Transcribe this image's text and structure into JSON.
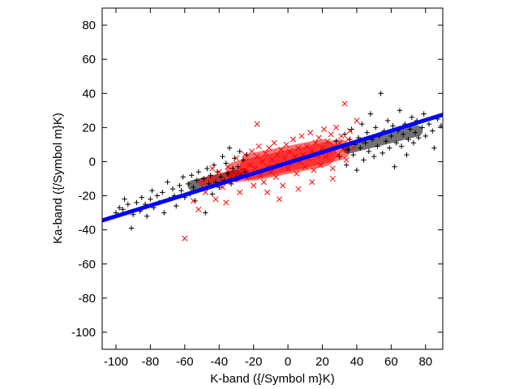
{
  "chart_data": {
    "type": "scatter",
    "xlabel": "K-band ({/Symbol m}K)",
    "ylabel": "Ka-band ({/Symbol m}K)",
    "xlim": [
      -108,
      90
    ],
    "ylim": [
      -110,
      90
    ],
    "x_ticks": [
      -100,
      -80,
      -60,
      -40,
      -20,
      0,
      20,
      40,
      60,
      80
    ],
    "y_ticks": [
      -100,
      -80,
      -60,
      -40,
      -20,
      0,
      20,
      40,
      60,
      80
    ],
    "grid": false,
    "legend": "none",
    "series": [
      {
        "marker": "plus",
        "color": "#000000",
        "points_estimated": [
          [
            -100,
            -30
          ],
          [
            -98,
            -27
          ],
          [
            -96,
            -28
          ],
          [
            -95,
            -22
          ],
          [
            -93,
            -25
          ],
          [
            -91,
            -39
          ],
          [
            -90,
            -31
          ],
          [
            -88,
            -24
          ],
          [
            -86,
            -29
          ],
          [
            -85,
            -21
          ],
          [
            -83,
            -25
          ],
          [
            -82,
            -32
          ],
          [
            -80,
            -22
          ],
          [
            -79,
            -17
          ],
          [
            -78,
            -27
          ],
          [
            -76,
            -20
          ],
          [
            -75,
            -24
          ],
          [
            -73,
            -18
          ],
          [
            -72,
            -30
          ],
          [
            -70,
            -12
          ],
          [
            -69,
            -22
          ],
          [
            -67,
            -16
          ],
          [
            -66,
            -20
          ],
          [
            -65,
            -26
          ],
          [
            -63,
            -14
          ],
          [
            -62,
            -17
          ],
          [
            -61,
            -9
          ],
          [
            -60,
            -21
          ],
          [
            -58,
            -13
          ],
          [
            -57,
            -19
          ],
          [
            -56,
            -8
          ],
          [
            -55,
            -15
          ],
          [
            -54,
            -23
          ],
          [
            -53,
            -11
          ],
          [
            -52,
            -6
          ],
          [
            -50,
            -16
          ],
          [
            -49,
            -10
          ],
          [
            -48,
            -30
          ],
          [
            -47,
            -4
          ],
          [
            -46,
            -13
          ],
          [
            -45,
            -8
          ],
          [
            -44,
            -19
          ],
          [
            -43,
            -2
          ],
          [
            -42,
            -12
          ],
          [
            -41,
            -6
          ],
          [
            -40,
            -15
          ],
          [
            -39,
            -9
          ],
          [
            -38,
            3
          ],
          [
            -37,
            -11
          ],
          [
            -36,
            -1
          ],
          [
            -35,
            -7
          ],
          [
            -34,
            8
          ],
          [
            -33,
            -13
          ],
          [
            -32,
            -4
          ],
          [
            -31,
            2
          ],
          [
            -30,
            -10
          ],
          [
            -29,
            -3
          ],
          [
            -28,
            6
          ],
          [
            -27,
            -8
          ],
          [
            -26,
            1
          ],
          [
            -25,
            -6
          ],
          [
            -24,
            4
          ],
          [
            28,
            12
          ],
          [
            30,
            3
          ],
          [
            32,
            9
          ],
          [
            33,
            16
          ],
          [
            34,
            -2
          ],
          [
            35,
            7
          ],
          [
            36,
            13
          ],
          [
            37,
            19
          ],
          [
            38,
            4
          ],
          [
            39,
            10
          ],
          [
            40,
            -5
          ],
          [
            41,
            14
          ],
          [
            42,
            8
          ],
          [
            43,
            22
          ],
          [
            44,
            1
          ],
          [
            45,
            11
          ],
          [
            46,
            17
          ],
          [
            47,
            6
          ],
          [
            48,
            28
          ],
          [
            49,
            13
          ],
          [
            50,
            3
          ],
          [
            51,
            20
          ],
          [
            52,
            9
          ],
          [
            53,
            15
          ],
          [
            54,
            40
          ],
          [
            55,
            5
          ],
          [
            56,
            18
          ],
          [
            57,
            12
          ],
          [
            58,
            24
          ],
          [
            59,
            8
          ],
          [
            60,
            15
          ],
          [
            61,
            21
          ],
          [
            62,
            -3
          ],
          [
            63,
            11
          ],
          [
            64,
            18
          ],
          [
            65,
            30
          ],
          [
            66,
            9
          ],
          [
            67,
            16
          ],
          [
            68,
            22
          ],
          [
            69,
            4
          ],
          [
            70,
            13
          ],
          [
            71,
            19
          ],
          [
            72,
            26
          ],
          [
            73,
            11
          ],
          [
            74,
            17
          ],
          [
            75,
            24
          ],
          [
            76,
            14
          ],
          [
            78,
            20
          ],
          [
            79,
            28
          ],
          [
            80,
            15
          ],
          [
            82,
            22
          ],
          [
            84,
            18
          ],
          [
            85,
            8
          ],
          [
            87,
            25
          ],
          [
            89,
            21
          ]
        ]
      },
      {
        "marker": "cross",
        "color": "#ff0000",
        "points_estimated": [
          [
            -60,
            -45
          ],
          [
            -55,
            -23
          ],
          [
            -52,
            -28
          ],
          [
            -48,
            -18
          ],
          [
            -45,
            -10
          ],
          [
            -42,
            -22
          ],
          [
            -40,
            -6
          ],
          [
            -38,
            -15
          ],
          [
            -35,
            -3
          ],
          [
            -33,
            -12
          ],
          [
            -31,
            -8
          ],
          [
            -30,
            2
          ],
          [
            -28,
            -18
          ],
          [
            -27,
            -5
          ],
          [
            -25,
            4
          ],
          [
            -24,
            -10
          ],
          [
            -22,
            -2
          ],
          [
            -21,
            6
          ],
          [
            -20,
            -14
          ],
          [
            -19,
            -4
          ],
          [
            -18,
            3
          ],
          [
            -17,
            9
          ],
          [
            -16,
            -8
          ],
          [
            -15,
            0
          ],
          [
            -14,
            -12
          ],
          [
            -13,
            5
          ],
          [
            -12,
            -3
          ],
          [
            -11,
            8
          ],
          [
            -10,
            -6
          ],
          [
            -9,
            1
          ],
          [
            -8,
            11
          ],
          [
            -7,
            -9
          ],
          [
            -6,
            4
          ],
          [
            -5,
            -2
          ],
          [
            -4,
            7
          ],
          [
            -3,
            -14
          ],
          [
            -2,
            2
          ],
          [
            -1,
            10
          ],
          [
            0,
            -4
          ],
          [
            1,
            6
          ],
          [
            2,
            -1
          ],
          [
            3,
            13
          ],
          [
            4,
            3
          ],
          [
            5,
            -7
          ],
          [
            6,
            8
          ],
          [
            7,
            0
          ],
          [
            8,
            15
          ],
          [
            9,
            4
          ],
          [
            10,
            -3
          ],
          [
            11,
            9
          ],
          [
            12,
            2
          ],
          [
            13,
            17
          ],
          [
            14,
            6
          ],
          [
            15,
            -5
          ],
          [
            16,
            11
          ],
          [
            17,
            4
          ],
          [
            18,
            14
          ],
          [
            19,
            -2
          ],
          [
            20,
            8
          ],
          [
            21,
            19
          ],
          [
            22,
            3
          ],
          [
            23,
            12
          ],
          [
            24,
            6
          ],
          [
            25,
            16
          ],
          [
            26,
            -4
          ],
          [
            27,
            9
          ],
          [
            28,
            20
          ],
          [
            29,
            4
          ],
          [
            30,
            11
          ],
          [
            31,
            15
          ],
          [
            32,
            7
          ],
          [
            33,
            34
          ],
          [
            34,
            1
          ],
          [
            35,
            13
          ],
          [
            36,
            18
          ],
          [
            38,
            8
          ],
          [
            40,
            24
          ],
          [
            42,
            12
          ],
          [
            -18,
            22
          ],
          [
            -12,
            -18
          ],
          [
            -5,
            -22
          ],
          [
            6,
            -16
          ],
          [
            14,
            -12
          ],
          [
            26,
            -10
          ],
          [
            -36,
            -24
          ],
          [
            -44,
            -4
          ]
        ]
      },
      {
        "name_hidden": "fit",
        "type": "line",
        "color": "#0000ff",
        "x": [
          -108,
          90
        ],
        "y": [
          -34.5,
          27.5
        ]
      }
    ]
  }
}
